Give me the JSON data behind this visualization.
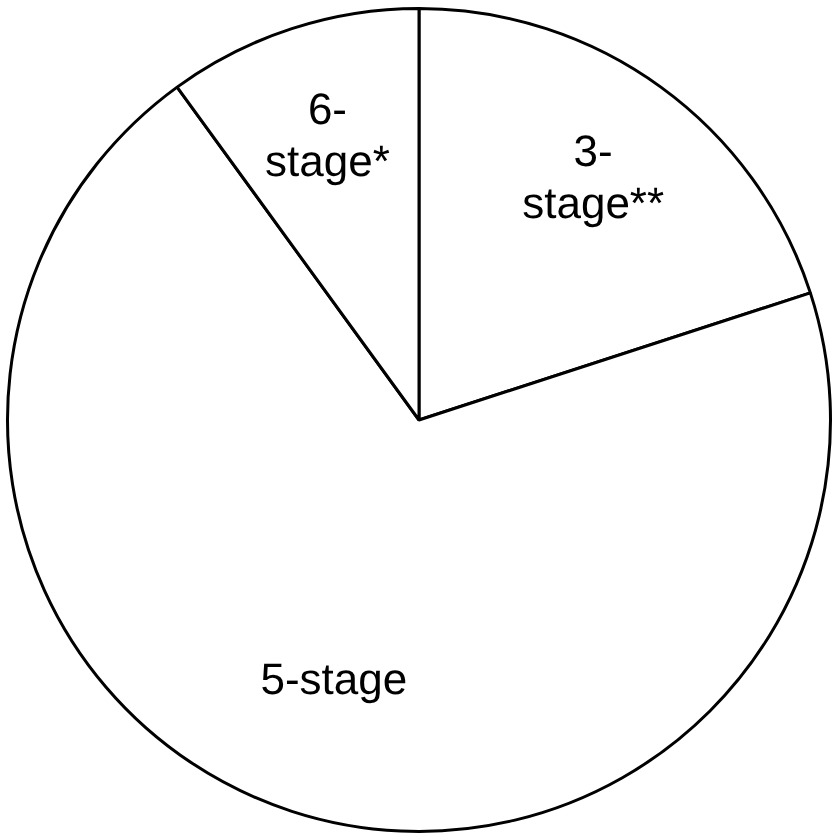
{
  "chart_data": {
    "type": "pie",
    "categories": [
      "3-stage**",
      "5-stage",
      "6-stage*"
    ],
    "values": [
      20,
      70,
      10
    ],
    "colors": [
      "#ffffff",
      "#ffffff",
      "#ffffff"
    ],
    "legend": false
  }
}
